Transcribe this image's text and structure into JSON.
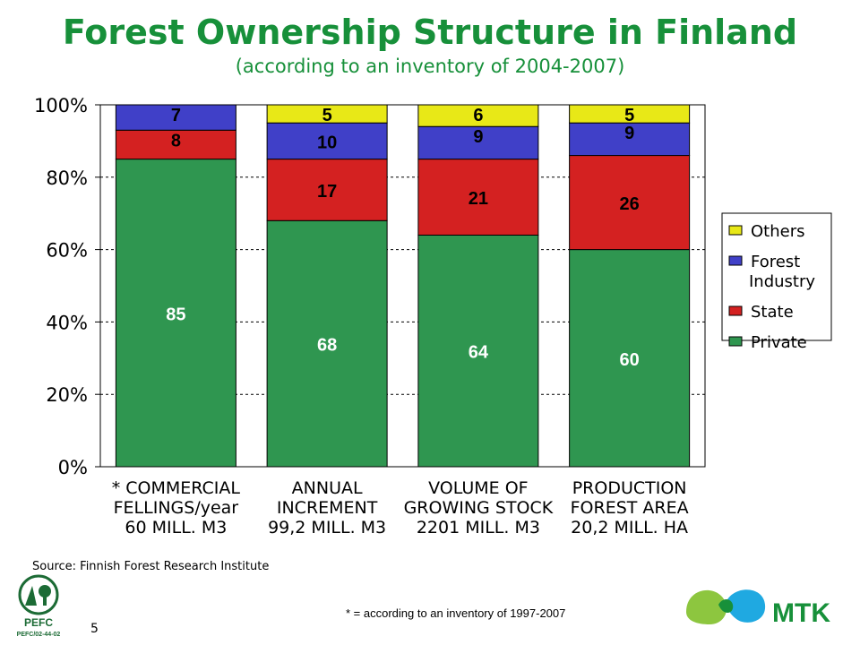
{
  "header": {
    "title": "Forest Ownership Structure in Finland",
    "subtitle": "(according to an inventory of 2004-2007)"
  },
  "footer": {
    "source": "Source: Finnish Forest Research Institute",
    "footnote": "* = according to an inventory of 1997-2007",
    "page_number": "5"
  },
  "logos": {
    "pefc_label": "PEFC",
    "pefc_code": "PEFC/02-44-02",
    "mtk_label": "MTK"
  },
  "colors": {
    "private": "#2f9650",
    "state": "#d42121",
    "forest_industry": "#4040c8",
    "others": "#e8e817",
    "title": "#17903a"
  },
  "chart_data": {
    "type": "bar",
    "stacked": true,
    "categories": [
      [
        "* COMMERCIAL",
        "FELLINGS/year",
        "60 MILL. M3"
      ],
      [
        "ANNUAL",
        "INCREMENT",
        "99,2 MILL. M3"
      ],
      [
        "VOLUME OF",
        "GROWING STOCK",
        "2201 MILL. M3"
      ],
      [
        "PRODUCTION",
        "FOREST AREA",
        "20,2 MILL. HA"
      ]
    ],
    "series": [
      {
        "name": "Private",
        "values": [
          85,
          68,
          64,
          60
        ],
        "color": "#2f9650"
      },
      {
        "name": "State",
        "values": [
          8,
          17,
          21,
          26
        ],
        "color": "#d42121"
      },
      {
        "name": "Forest Industry",
        "values": [
          7,
          10,
          9,
          9
        ],
        "color": "#4040c8"
      },
      {
        "name": "Others",
        "values": [
          0,
          5,
          6,
          5
        ],
        "color": "#e8e817"
      }
    ],
    "data_labels": [
      [
        "85",
        "8",
        "7",
        ""
      ],
      [
        "68",
        "17",
        "10",
        "5"
      ],
      [
        "64",
        "21",
        "9",
        "6"
      ],
      [
        "60",
        "26",
        "9",
        "5"
      ]
    ],
    "legend": {
      "placement": "right",
      "entries": [
        {
          "label_lines": [
            "Others"
          ],
          "color": "#e8e817"
        },
        {
          "label_lines": [
            "Forest",
            "Industry"
          ],
          "color": "#4040c8"
        },
        {
          "label_lines": [
            "State"
          ],
          "color": "#d42121"
        },
        {
          "label_lines": [
            "Private"
          ],
          "color": "#2f9650"
        }
      ]
    },
    "y_ticks": [
      "0%",
      "20%",
      "40%",
      "60%",
      "80%",
      "100%"
    ],
    "y_tick_values": [
      0,
      20,
      40,
      60,
      80,
      100
    ],
    "ylim": [
      0,
      100
    ],
    "grid": true,
    "xlabel": "",
    "ylabel": ""
  }
}
